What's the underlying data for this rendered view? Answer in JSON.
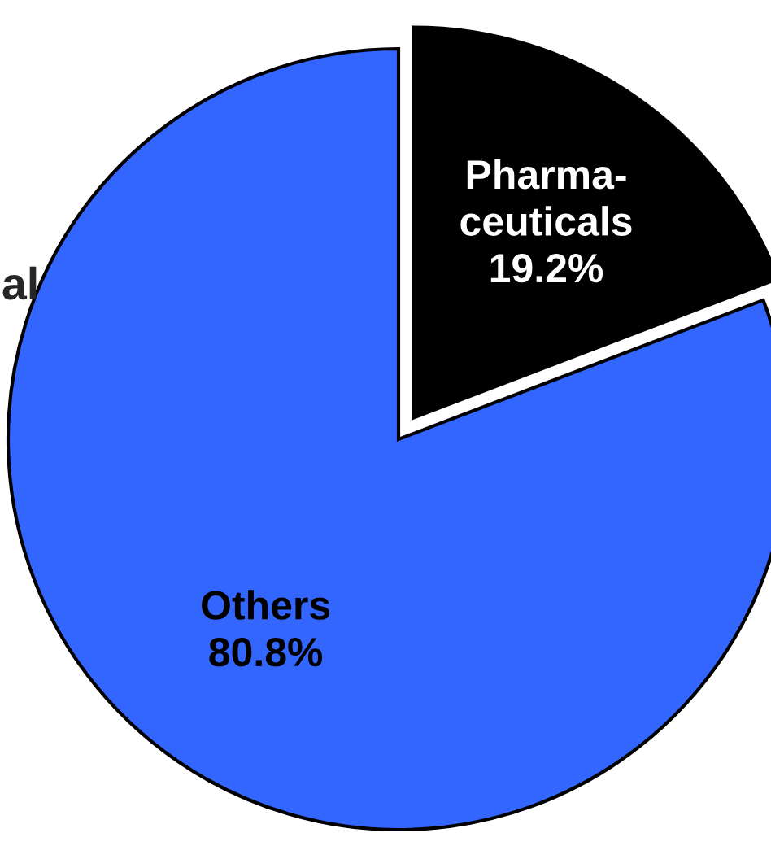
{
  "chart_data": {
    "type": "pie",
    "categories": [
      "Pharma-\nceuticals",
      "Others"
    ],
    "values": [
      19.2,
      80.8
    ],
    "colors": [
      "#000000",
      "#3366ff"
    ],
    "value_labels": [
      "19.2%",
      "80.8%"
    ],
    "annotations": [
      "al"
    ]
  }
}
